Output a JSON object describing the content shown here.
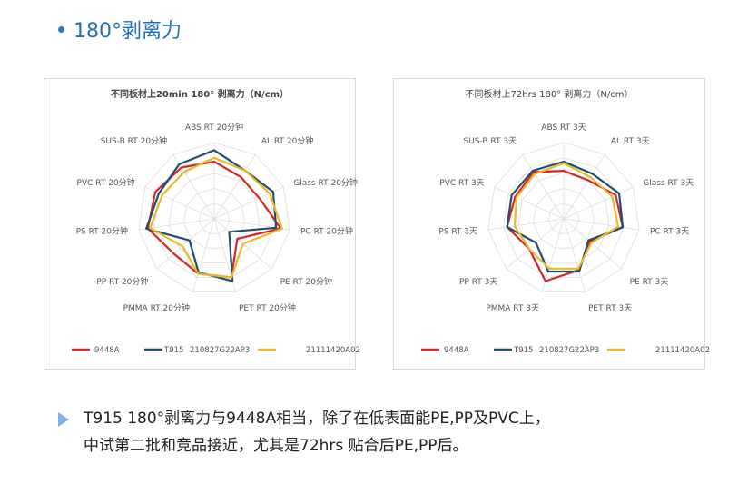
{
  "section": {
    "title": "180°剥离力",
    "accent_color": "#2a79c7"
  },
  "chart_data": [
    {
      "type": "radar",
      "title": "不同板材上20min 180° 剥离力（N/cm）",
      "axes": [
        "ABS RT 20分钟",
        "AL RT 20分钟",
        "Glass RT 20分钟",
        "PC RT 20分钟",
        "PE RT 20分钟",
        "PET RT 20分钟",
        "PMMA RT 20分钟",
        "PP RT 20分钟",
        "PS RT 20分钟",
        "PVC RT 20分钟",
        "SUS-B RT 20分钟"
      ],
      "grid_levels": 5,
      "rmax": 10,
      "series": [
        {
          "name": "9448A",
          "color": "#d62728",
          "values": [
            7.5,
            6.5,
            6.5,
            8.8,
            4.0,
            8.0,
            7.5,
            7.0,
            8.8,
            8.5,
            8.0
          ]
        },
        {
          "name": "T915",
          "color": "#1f4e6e",
          "values": [
            9.0,
            7.5,
            8.5,
            8.2,
            2.6,
            8.5,
            7.3,
            4.3,
            9.0,
            8.0,
            8.5
          ]
        },
        {
          "name": "210827G22AP3",
          "color": "#e8b92a",
          "values": [
            8.0,
            7.5,
            8.0,
            9.0,
            5.0,
            8.0,
            7.5,
            5.5,
            8.5,
            7.5,
            7.3
          ]
        },
        {
          "name": "21111420A02",
          "color": "#999999",
          "values": []
        }
      ]
    },
    {
      "type": "radar",
      "title": "不同板材上72hrs 180° 剥离力（N/cm）",
      "axes": [
        "ABS RT 3天",
        "AL RT 3天",
        "Glass RT 3天",
        "PC RT 3天",
        "PE RT 3天",
        "PET RT 3天",
        "PMMA RT 3天",
        "PP RT 3天",
        "PS RT 3天",
        "PVC RT 3天",
        "SUS-B RT 3天"
      ],
      "grid_levels": 5,
      "rmax": 10,
      "series": [
        {
          "name": "9448A",
          "color": "#d62728",
          "values": [
            6.3,
            6.0,
            7.5,
            7.8,
            4.5,
            7.0,
            8.5,
            6.0,
            7.5,
            7.0,
            7.3
          ]
        },
        {
          "name": "T915",
          "color": "#1f4e6e",
          "values": [
            7.5,
            7.0,
            8.0,
            7.8,
            4.3,
            7.2,
            7.2,
            4.8,
            7.5,
            7.5,
            7.5
          ]
        },
        {
          "name": "210827G22AP3",
          "color": "#e8b92a",
          "values": [
            7.3,
            6.5,
            7.0,
            7.2,
            4.8,
            6.8,
            6.8,
            6.0,
            6.5,
            6.8,
            7.0
          ]
        },
        {
          "name": "21111420A02",
          "color": "#999999",
          "values": []
        }
      ]
    }
  ],
  "bottom": {
    "line1": "T915 180°剥离力与9448A相当，除了在低表面能PE,PP及PVC上，",
    "line2": "中试第二批和竞品接近，尤其是72hrs 贴合后PE,PP后。"
  }
}
